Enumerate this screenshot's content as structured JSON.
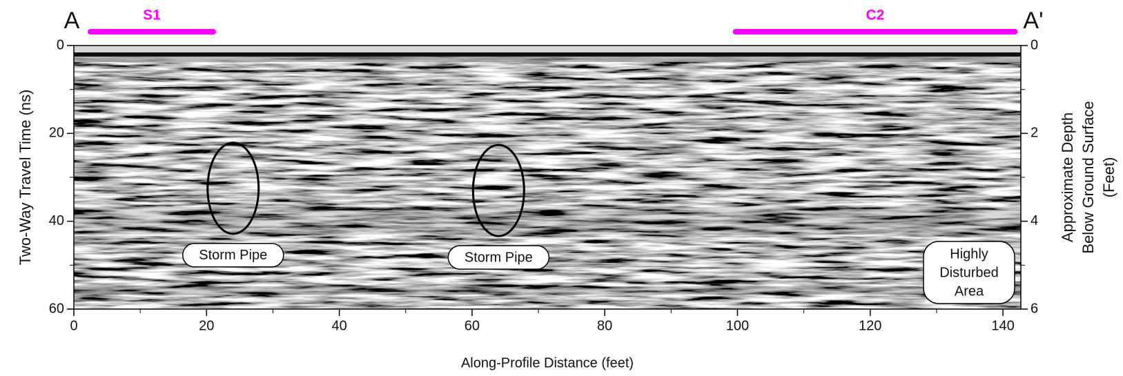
{
  "chart_data": {
    "type": "radargram",
    "xlabel": "Along-Profile Distance (feet)",
    "ylabel": "Two-Way Travel Time (ns)",
    "y2label": [
      "Approximate Depth",
      "Below Ground Surface",
      "(Feet)"
    ],
    "start_label": "A",
    "end_label": "A'",
    "xlim": [
      0,
      142.7
    ],
    "xticks": [
      0,
      20,
      40,
      60,
      80,
      100,
      120,
      140
    ],
    "x_minor_ticks": [
      10,
      30,
      50,
      70,
      90,
      110,
      130
    ],
    "ylim": [
      0,
      60
    ],
    "yticks": [
      0,
      20,
      40,
      60
    ],
    "y_minor_ticks": [
      10,
      30,
      50
    ],
    "y2lim": [
      0,
      6
    ],
    "y2ticks": [
      0,
      2,
      4,
      6
    ],
    "y2_minor_ticks": [
      1,
      3,
      5
    ],
    "segment_color": "#ff00ff",
    "segments": [
      {
        "name": "S1",
        "x": [
          2.5,
          21
        ]
      },
      {
        "name": "C2",
        "x": [
          99.7,
          141.8
        ]
      }
    ],
    "features": [
      {
        "label": "Storm Pipe",
        "x": 24,
        "y": 32.5
      },
      {
        "label": "Storm Pipe",
        "x": 64,
        "y": 33
      }
    ],
    "area_label": [
      "Highly",
      "Disturbed",
      "Area"
    ]
  }
}
